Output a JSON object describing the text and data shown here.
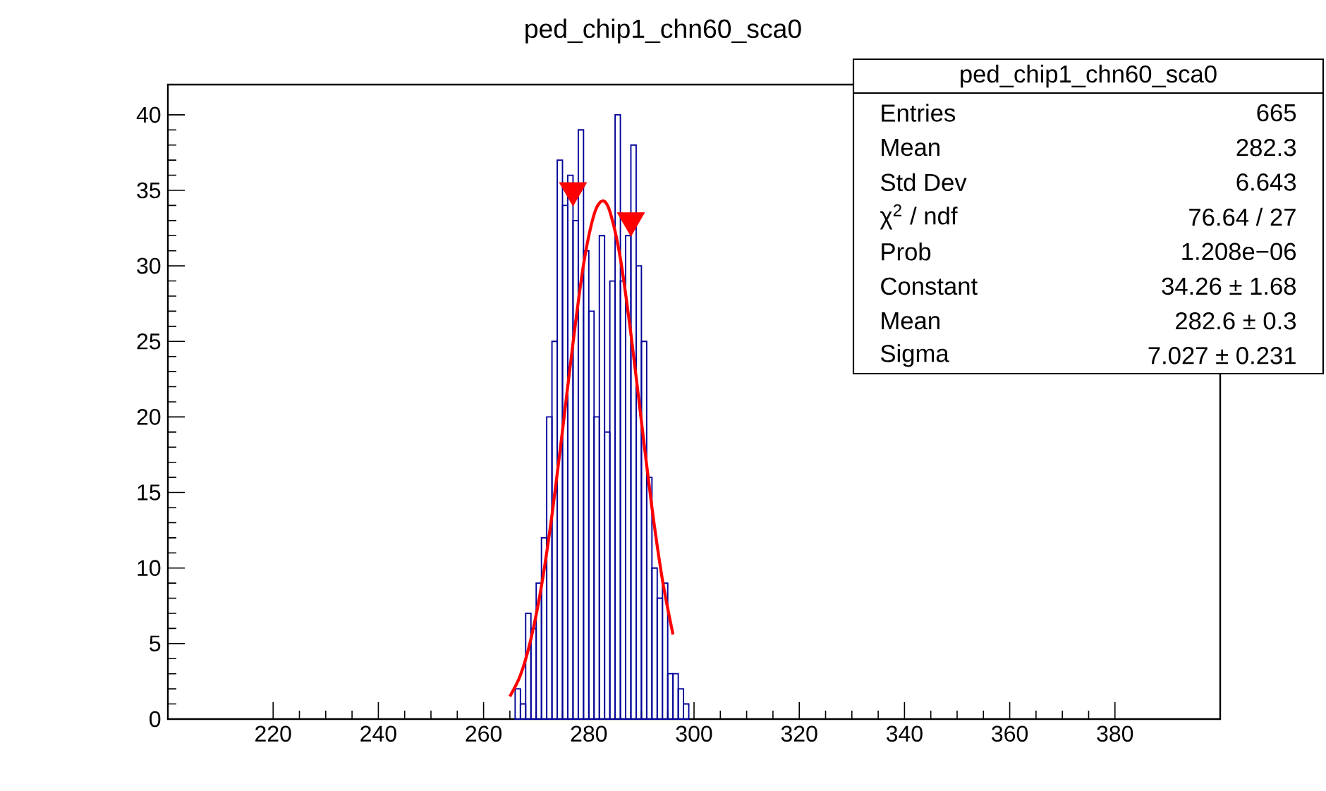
{
  "chart_data": {
    "type": "histogram",
    "title": "ped_chip1_chn60_sca0",
    "xlim": [
      200,
      400
    ],
    "ylim": [
      0,
      42
    ],
    "xticks": [
      220,
      240,
      260,
      280,
      300,
      320,
      340,
      360,
      380
    ],
    "yticks": [
      0,
      5,
      10,
      15,
      20,
      25,
      30,
      35,
      40
    ],
    "grid": false,
    "series": [
      {
        "color": "#000099",
        "bins": [
          266,
          267,
          268,
          269,
          270,
          271,
          272,
          273,
          274,
          275,
          276,
          277,
          278,
          279,
          280,
          281,
          282,
          283,
          284,
          285,
          286,
          287,
          288,
          289,
          290,
          291,
          292,
          293,
          294,
          295,
          296,
          297,
          298,
          299
        ],
        "values": [
          2,
          1,
          7,
          6,
          9,
          12,
          20,
          25,
          37,
          34,
          36,
          33,
          39,
          31,
          27,
          20,
          32,
          19,
          29,
          40,
          29,
          32,
          38,
          30,
          25,
          16,
          10,
          8,
          9,
          3,
          3,
          2,
          1
        ]
      },
      {
        "type": "line",
        "color": "#ff0000",
        "line_style": "solid",
        "marker": "none",
        "x": [
          265,
          267,
          269,
          271,
          273,
          275,
          277,
          279,
          281,
          282.6,
          284,
          286,
          288,
          290,
          292,
          294,
          296
        ],
        "values": [
          1.5,
          2.9,
          5.3,
          8.8,
          13.5,
          19.1,
          24.9,
          30.1,
          33.4,
          34.3,
          33.6,
          30.5,
          25.5,
          19.7,
          14.0,
          9.2,
          5.6
        ]
      },
      {
        "type": "scatter",
        "color": "#ff0000",
        "marker": "triangle",
        "x": [
          277,
          288
        ],
        "values": [
          35,
          33
        ]
      }
    ],
    "annotations": [
      "ped_chip1_chn60_sca0",
      "Entries",
      "665",
      "Mean",
      "282.3",
      "Std Dev",
      "6.643",
      "χ$^{2}$ / ndf",
      "76.64 / 27",
      "Prob",
      "1.208e−06",
      "Constant",
      "34.26 ± 1.68",
      "Mean",
      "282.6 ± 0.3",
      "Sigma",
      "7.027 ± 0.231"
    ]
  }
}
